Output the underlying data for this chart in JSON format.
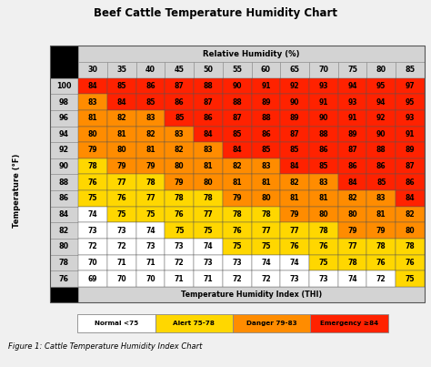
{
  "title": "Beef Cattle Temperature Humidity Chart",
  "col_header": "Relative Humidity (%)",
  "row_header": "Temperature Humidity Index (THI)",
  "y_label": "Temperature (°F)",
  "humidity_cols": [
    30,
    35,
    40,
    45,
    50,
    55,
    60,
    65,
    70,
    75,
    80,
    85
  ],
  "temp_rows": [
    100,
    98,
    96,
    94,
    92,
    90,
    88,
    86,
    84,
    82,
    80,
    78,
    76
  ],
  "thi_values": [
    [
      84,
      85,
      86,
      87,
      88,
      90,
      91,
      92,
      93,
      94,
      95,
      97
    ],
    [
      83,
      84,
      85,
      86,
      87,
      88,
      89,
      90,
      91,
      93,
      94,
      95
    ],
    [
      81,
      82,
      83,
      85,
      86,
      87,
      88,
      89,
      90,
      91,
      92,
      93
    ],
    [
      80,
      81,
      82,
      83,
      84,
      85,
      86,
      87,
      88,
      89,
      90,
      91
    ],
    [
      79,
      80,
      81,
      82,
      83,
      84,
      85,
      85,
      86,
      87,
      88,
      89
    ],
    [
      78,
      79,
      79,
      80,
      81,
      82,
      83,
      84,
      85,
      86,
      86,
      87
    ],
    [
      76,
      77,
      78,
      79,
      80,
      81,
      81,
      82,
      83,
      84,
      85,
      86
    ],
    [
      75,
      76,
      77,
      78,
      78,
      79,
      80,
      81,
      81,
      82,
      83,
      84
    ],
    [
      74,
      75,
      75,
      76,
      77,
      78,
      78,
      79,
      80,
      80,
      81,
      82
    ],
    [
      73,
      73,
      74,
      75,
      75,
      76,
      77,
      77,
      78,
      79,
      79,
      80
    ],
    [
      72,
      72,
      73,
      73,
      74,
      75,
      75,
      76,
      76,
      77,
      78,
      78
    ],
    [
      70,
      71,
      71,
      72,
      73,
      73,
      74,
      74,
      75,
      78,
      76,
      76
    ],
    [
      69,
      70,
      70,
      71,
      71,
      72,
      72,
      73,
      73,
      74,
      72,
      75
    ]
  ],
  "color_normal": "#ffffff",
  "color_alert": "#FFD700",
  "color_danger": "#FF8C00",
  "color_emergency": "#FF2200",
  "legend_colors": [
    "#ffffff",
    "#FFD700",
    "#FF8C00",
    "#FF2200"
  ],
  "legend_labels": [
    "Normal <75",
    "Alert 75-78",
    "Danger 79-83",
    "Emergency ≥84"
  ],
  "figure_caption": "Figure 1: Cattle Temperature Humidity Index Chart",
  "bg_color": "#f0f0f0",
  "header_bg": "#d3d3d3",
  "black": "#000000"
}
